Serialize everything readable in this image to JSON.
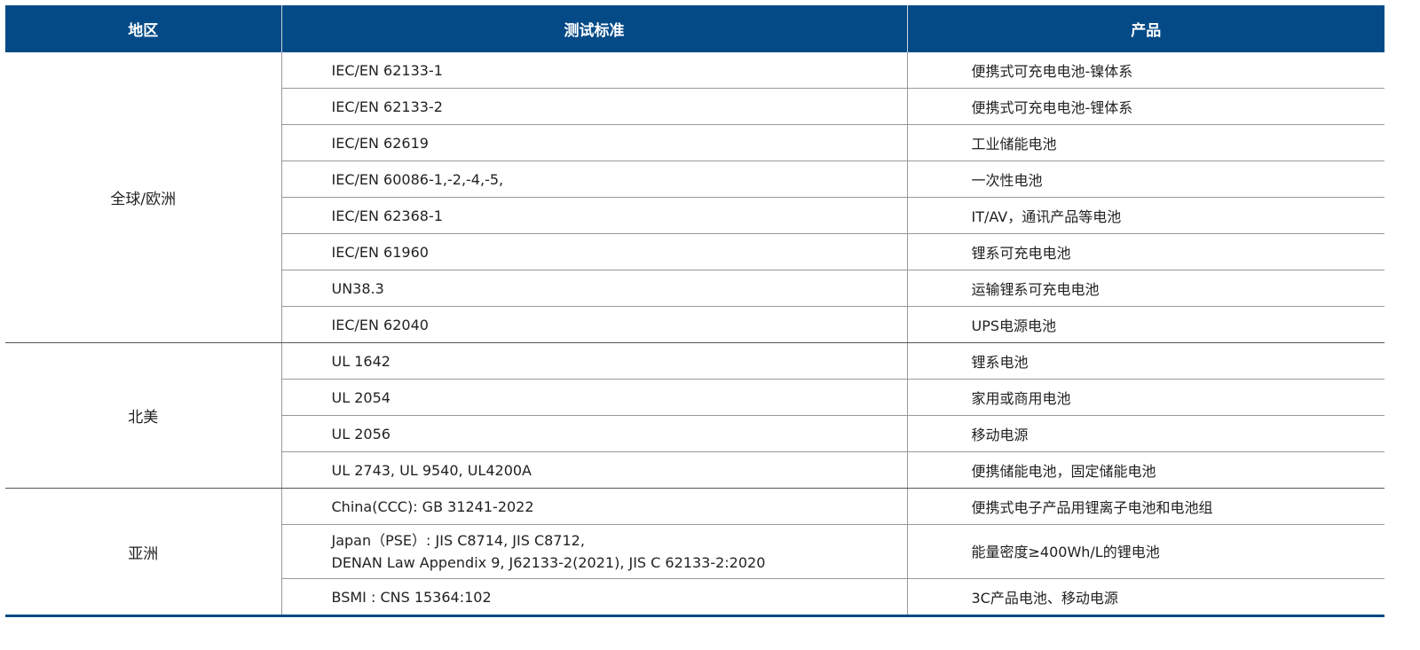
{
  "header": {
    "region": "地区",
    "standard": "测试标准",
    "product": "产品"
  },
  "groups": [
    {
      "region": "全球/欧洲",
      "rows": [
        {
          "standard": "IEC/EN 62133-1",
          "product": "便携式可充电电池-镍体系"
        },
        {
          "standard": "IEC/EN 62133-2",
          "product": "便携式可充电电池-锂体系"
        },
        {
          "standard": "IEC/EN 62619",
          "product": "工业储能电池"
        },
        {
          "standard": "IEC/EN 60086-1,-2,-4,-5,",
          "product": "一次性电池"
        },
        {
          "standard": "IEC/EN 62368-1",
          "product": "IT/AV，通讯产品等电池"
        },
        {
          "standard": "IEC/EN 61960",
          "product": "锂系可充电电池"
        },
        {
          "standard": "UN38.3",
          "product": "运输锂系可充电电池"
        },
        {
          "standard": "IEC/EN 62040",
          "product": "UPS电源电池"
        }
      ]
    },
    {
      "region": "北美",
      "rows": [
        {
          "standard": "UL 1642",
          "product": "锂系电池"
        },
        {
          "standard": "UL 2054",
          "product": "家用或商用电池"
        },
        {
          "standard": "UL 2056",
          "product": "移动电源"
        },
        {
          "standard": "UL 2743, UL 9540, UL4200A",
          "product": "便携储能电池，固定储能电池"
        }
      ]
    },
    {
      "region": "亚洲",
      "rows": [
        {
          "standard": "China(CCC):  GB 31241-2022",
          "product": "便携式电子产品用锂离子电池和电池组"
        },
        {
          "standard": "Japan（PSE）: JIS C8714, JIS C8712,",
          "standard_line2": "DENAN Law Appendix 9, J62133-2(2021), JIS C 62133-2:2020",
          "product": "能量密度≥400Wh/L的锂电池"
        },
        {
          "standard": "BSMI : CNS 15364:102",
          "product": "3C产品电池、移动电源"
        }
      ]
    }
  ]
}
